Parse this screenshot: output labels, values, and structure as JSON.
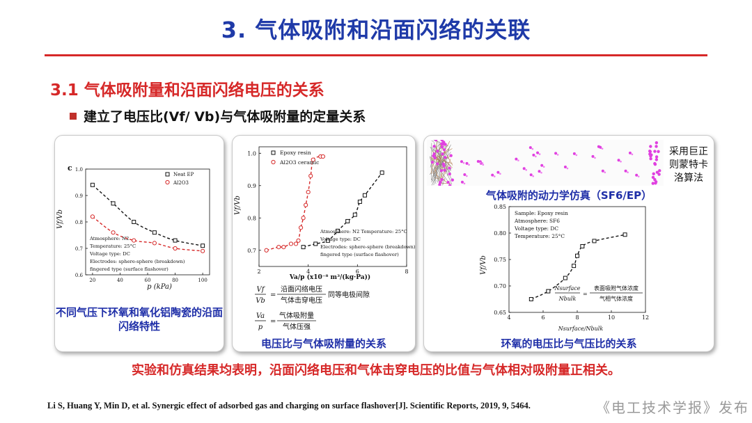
{
  "slide": {
    "title": "3. 气体吸附和沿面闪络的关联",
    "section_title": "3.1 气体吸附量和沿面闪络电压的关系",
    "bullet": "建立了电压比(Vf/ Vb)与气体吸附量的定量关系",
    "conclusion": "实验和仿真结果均表明，沿面闪络电压和气体击穿电压的比值与气体相对吸附量正相关。",
    "reference": "Li S, Huang Y, Min D, et al. Synergic effect of adsorbed gas and charging on surface flashover[J]. Scientific Reports, 2019, 9, 5464.",
    "publisher": "《电工技术学报》发布"
  },
  "panel1": {
    "caption": "不同气压下环氧和氧化铝陶瓷的沿面闪络特性",
    "panel_letter": "c",
    "ylabel": "Vf/Vb",
    "xlabel": "p (kPa)",
    "legend": [
      "Neat EP",
      "Al2O3"
    ],
    "annotations": [
      "Atmosphere: N2",
      "Temperature: 25°C",
      "Voltage type: DC",
      "Electrodes: sphere-sphere (breakdown)",
      "fingered type (surface flashover)"
    ]
  },
  "panel2": {
    "caption": "电压比与气体吸附量的关系",
    "ylabel": "Vf/Vb",
    "xlabel": "Va/p (x10⁻⁸ m³/(kg·Pa))",
    "legend": [
      "Epoxy resin",
      "Al2O3 ceramic"
    ],
    "annotations": [
      "Atmosphere: N2  Temperature: 25°C",
      "Voltage type: DC",
      "Electrodes: sphere-sphere (breakdown)",
      "fingered type (surface flashover)"
    ],
    "formula1_lhs_num": "Vf",
    "formula1_lhs_den": "Vb",
    "formula1_num": "沿面闪络电压",
    "formula1_den": "气体击穿电压",
    "formula1_note": "同等电极间隙",
    "formula2_lhs_num": "Va",
    "formula2_lhs_den": "p",
    "formula2_num": "气体吸附量",
    "formula2_den": "气体压强"
  },
  "panel3": {
    "sim_caption": "气体吸附的动力学仿真（SF6/EP）",
    "side_note": "采用巨正则蒙特卡洛算法",
    "caption": "环氧的电压比与气压比的关系",
    "ylabel": "Vf/Vb",
    "xlabel": "Nsurface/Nbulk",
    "annotations": [
      "Sample: Epoxy resin",
      "Atmosphere: SF6",
      "Voltage type: DC",
      "Temperature: 25°C"
    ],
    "formula_lhs_num": "Nsurface",
    "formula_lhs_den": "Nbulk",
    "formula_num": "表面吸附气体浓度",
    "formula_den": "气相气体浓度"
  },
  "chart_data": [
    {
      "type": "scatter",
      "xlabel": "p (kPa)",
      "ylabel": "Vf/Vb",
      "xlim": [
        15,
        105
      ],
      "ylim": [
        0.6,
        1.0
      ],
      "x_ticks": [
        20,
        40,
        60,
        80,
        100
      ],
      "y_ticks": [
        0.6,
        0.7,
        0.8,
        0.9,
        1.0
      ],
      "series": [
        {
          "name": "Neat EP",
          "color": "#111111",
          "marker": "square",
          "x": [
            20,
            35,
            50,
            65,
            80,
            100
          ],
          "y": [
            0.94,
            0.87,
            0.8,
            0.76,
            0.73,
            0.71
          ]
        },
        {
          "name": "Al2O3",
          "color": "#d62828",
          "marker": "circle",
          "x": [
            20,
            35,
            50,
            65,
            80,
            100
          ],
          "y": [
            0.82,
            0.76,
            0.73,
            0.72,
            0.7,
            0.69
          ]
        }
      ]
    },
    {
      "type": "scatter",
      "xlabel": "Va/p (x10⁻⁸ m³/(kg·Pa))",
      "ylabel": "Vf/Vb",
      "xlim": [
        2,
        8
      ],
      "ylim": [
        0.65,
        1.02
      ],
      "x_ticks": [
        2,
        4,
        6,
        8
      ],
      "y_ticks": [
        0.7,
        0.8,
        0.9,
        1.0
      ],
      "series": [
        {
          "name": "Epoxy resin",
          "color": "#111111",
          "marker": "square",
          "x": [
            3.8,
            4.3,
            4.8,
            5.2,
            5.6,
            5.9,
            6.1,
            6.3,
            7.0
          ],
          "y": [
            0.71,
            0.72,
            0.73,
            0.76,
            0.79,
            0.81,
            0.85,
            0.87,
            0.94
          ]
        },
        {
          "name": "Al2O3 ceramic",
          "color": "#d62828",
          "marker": "circle",
          "x": [
            2.3,
            2.8,
            3.0,
            3.3,
            3.5,
            3.6,
            3.7,
            3.8,
            3.9,
            4.0,
            4.1,
            4.2,
            4.5,
            4.6
          ],
          "y": [
            0.7,
            0.71,
            0.71,
            0.72,
            0.72,
            0.73,
            0.77,
            0.8,
            0.84,
            0.88,
            0.93,
            0.98,
            0.99,
            0.99
          ]
        }
      ]
    },
    {
      "type": "scatter",
      "xlabel": "Nsurface/Nbulk",
      "ylabel": "Vf/Vb",
      "xlim": [
        4,
        12
      ],
      "ylim": [
        0.65,
        0.85
      ],
      "x_ticks": [
        4,
        6,
        8,
        10,
        12
      ],
      "y_ticks": [
        0.65,
        0.7,
        0.75,
        0.8,
        0.85
      ],
      "series": [
        {
          "name": "Epoxy resin",
          "color": "#111111",
          "marker": "square",
          "x": [
            5.3,
            6.3,
            7.3,
            7.8,
            8.0,
            8.3,
            9.0,
            10.8
          ],
          "y": [
            0.675,
            0.69,
            0.715,
            0.738,
            0.757,
            0.775,
            0.785,
            0.797
          ]
        }
      ]
    }
  ]
}
